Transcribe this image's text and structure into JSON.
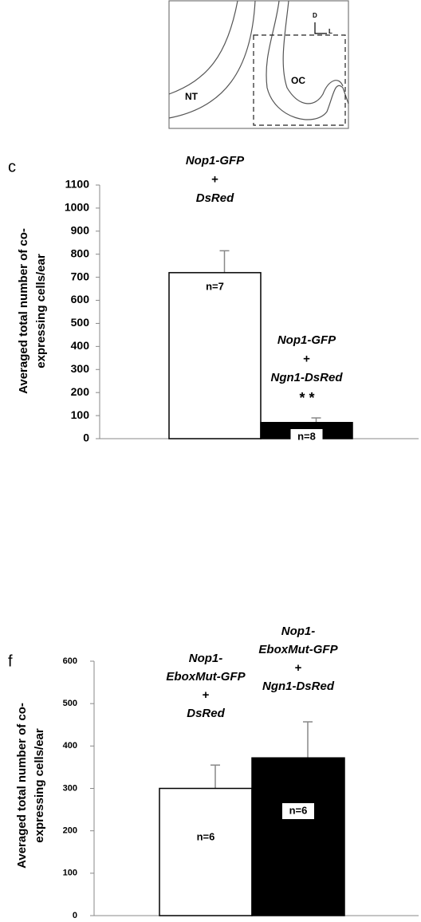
{
  "diagram": {
    "labels": [
      "NT",
      "OC",
      "D",
      "L"
    ]
  },
  "chart_data": [
    {
      "type": "bar",
      "panel": "c",
      "ylabel": [
        "Averaged total number of co-",
        "expressing cells/ear"
      ],
      "values": [
        720,
        70
      ],
      "errors": [
        95,
        20
      ],
      "colors": [
        "#ffffff",
        "#000000"
      ],
      "bar_labels": [
        "n=7",
        "n=8"
      ],
      "annotations": [
        [
          "Nop1-GFP",
          "+",
          "DsRed"
        ],
        [
          "Nop1-GFP",
          "+",
          "Ngn1-DsRed"
        ]
      ],
      "significance": "* *",
      "ylim": [
        0,
        1100
      ],
      "yticks": [
        0,
        100,
        200,
        300,
        400,
        500,
        600,
        700,
        800,
        900,
        1000,
        1100
      ]
    },
    {
      "type": "bar",
      "panel": "f",
      "ylabel": [
        "Averaged total number of co-",
        "expressing cells/ear"
      ],
      "values": [
        300,
        372
      ],
      "errors": [
        55,
        85
      ],
      "colors": [
        "#ffffff",
        "#000000"
      ],
      "bar_labels": [
        "n=6",
        "n=6"
      ],
      "annotations": [
        [
          "Nop1-",
          "EboxMut-GFP",
          "+",
          "DsRed"
        ],
        [
          "Nop1-",
          "EboxMut-GFP",
          "+",
          "Ngn1-DsRed"
        ]
      ],
      "ylim": [
        0,
        600
      ],
      "yticks": [
        0,
        100,
        200,
        300,
        400,
        500,
        600
      ]
    }
  ]
}
